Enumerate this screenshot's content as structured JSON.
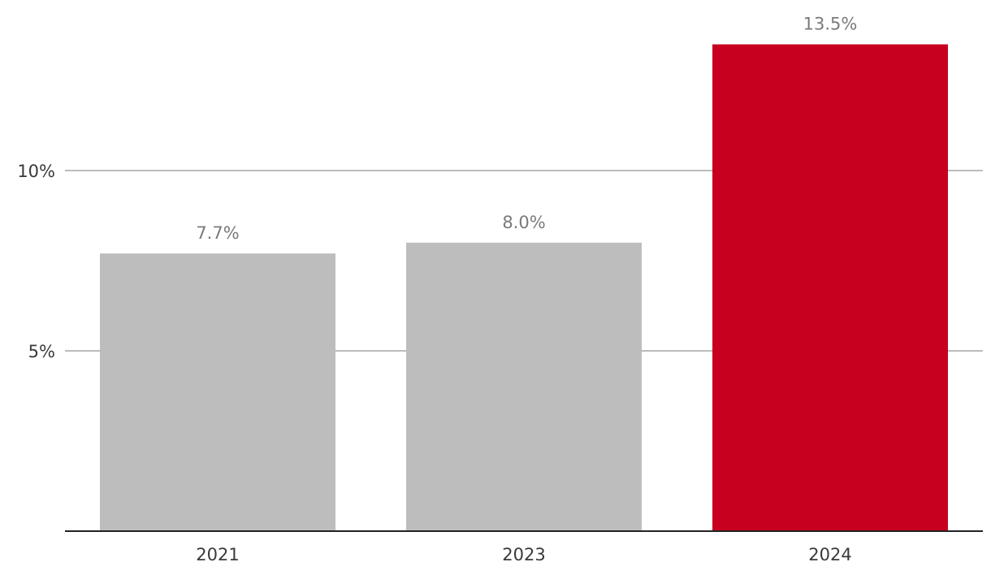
{
  "chart_data": {
    "type": "bar",
    "title": "",
    "xlabel": "",
    "ylabel": "",
    "categories": [
      "2021",
      "2023",
      "2024"
    ],
    "values": [
      7.7,
      8.0,
      13.5
    ],
    "value_labels": [
      "7.7%",
      "8.0%",
      "13.5%"
    ],
    "ylim": [
      0,
      13.5
    ],
    "y_ticks": [
      {
        "value": 5,
        "label": "5%"
      },
      {
        "value": 10,
        "label": "10%"
      }
    ],
    "grid": true,
    "legend": "none",
    "colors": {
      "default_bar": "#bdbdbd",
      "highlight_bar": "#c8001f",
      "gridline": "#a6a6a6",
      "baseline": "#222222",
      "value_label": "#7a7a7a",
      "axis_label": "#3a3a3a"
    },
    "highlight_category": "2024"
  }
}
